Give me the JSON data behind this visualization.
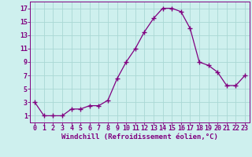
{
  "x": [
    0,
    1,
    2,
    3,
    4,
    5,
    6,
    7,
    8,
    9,
    10,
    11,
    12,
    13,
    14,
    15,
    16,
    17,
    18,
    19,
    20,
    21,
    22,
    23
  ],
  "y": [
    3,
    1,
    1,
    1,
    2,
    2,
    2.5,
    2.5,
    3.3,
    6.5,
    9,
    11,
    13.5,
    15.5,
    17,
    17,
    16.5,
    14,
    9,
    8.5,
    7.5,
    5.5,
    5.5,
    7
  ],
  "line_color": "#800080",
  "marker": "+",
  "marker_size": 4,
  "xlabel": "Windchill (Refroidissement éolien,°C)",
  "xlim_min": -0.5,
  "xlim_max": 23.5,
  "ylim_min": 0,
  "ylim_max": 18,
  "xticks": [
    0,
    1,
    2,
    3,
    4,
    5,
    6,
    7,
    8,
    9,
    10,
    11,
    12,
    13,
    14,
    15,
    16,
    17,
    18,
    19,
    20,
    21,
    22,
    23
  ],
  "yticks": [
    1,
    3,
    5,
    7,
    9,
    11,
    13,
    15,
    17
  ],
  "background_color": "#cef0ee",
  "grid_color": "#aad8d4",
  "font_color": "#800080",
  "tick_font_size": 6,
  "xlabel_font_size": 6.5
}
